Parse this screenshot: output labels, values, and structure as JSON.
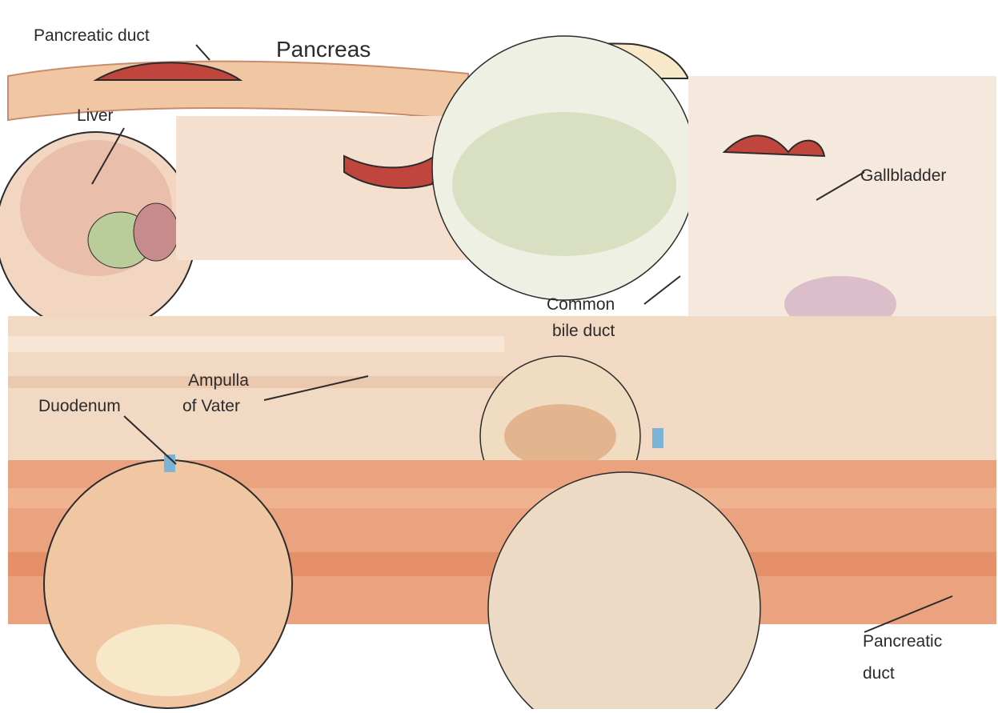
{
  "diagram": {
    "labels": {
      "pancreatic_duct_top": "Pancreatic duct",
      "pancreas": "Pancreas",
      "liver": "Liver",
      "gallbladder": "Gallbladder",
      "common_bile_duct_1": "Common",
      "common_bile_duct_2": "bile duct",
      "ampulla_1": "Ampulla",
      "ampulla_2": "of Vater",
      "duodenum": "Duodenum",
      "pancreatic_duct_bottom_1": "Pancreatic",
      "pancreatic_duct_bottom_2": "duct"
    },
    "colors": {
      "outline": "#2b2b2b",
      "duct_red": "#c0463d",
      "liver_brown": "#c98b6e",
      "pancreas_peach": "#f1c7a3",
      "bile_green": "#b9cc9a",
      "gall_purple": "#b88fc4",
      "duodenum_orange": "#e3895f",
      "cream": "#f6e8c8",
      "blue_duct": "#7bb3d6"
    }
  }
}
